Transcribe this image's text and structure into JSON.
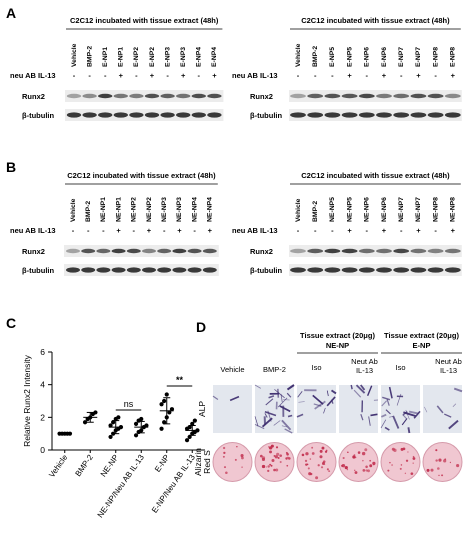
{
  "panels": {
    "A": {
      "label": "A",
      "blots": [
        {
          "header": "C2C12 incubated with tissue extract (48h)",
          "lanes": [
            "Vehicle",
            "BMP-2",
            "E-NP1",
            "E-NP1",
            "E-NP2",
            "E-NP2",
            "E-NP3",
            "E-NP3",
            "E-NP4",
            "E-NP4"
          ],
          "treatment_label": "neu AB IL-13",
          "treatment": [
            "-",
            "-",
            "-",
            "+",
            "-",
            "+",
            "-",
            "+",
            "-",
            "+"
          ],
          "rows": [
            "Runx2",
            "β-tubulin"
          ]
        },
        {
          "header": "C2C12 incubated with tissue extract (48h)",
          "lanes": [
            "Vehicle",
            "BMP-2",
            "E-NP5",
            "E-NP5",
            "E-NP6",
            "E-NP6",
            "E-NP7",
            "E-NP7",
            "E-NP8",
            "E-NP8"
          ],
          "treatment_label": "neu AB IL-13",
          "treatment": [
            "-",
            "-",
            "-",
            "+",
            "-",
            "+",
            "-",
            "+",
            "-",
            "+"
          ],
          "rows": [
            "Runx2",
            "β-tubulin"
          ]
        }
      ]
    },
    "B": {
      "label": "B",
      "blots": [
        {
          "header": "C2C12 incubated with tissue extract (48h)",
          "lanes": [
            "Vehicle",
            "BMP-2",
            "NE-NP1",
            "NE-NP1",
            "NE-NP2",
            "NE-NP2",
            "NE-NP3",
            "NE-NP3",
            "NE-NP4",
            "NE-NP4"
          ],
          "treatment_label": "neu AB IL-13",
          "treatment": [
            "-",
            "-",
            "-",
            "+",
            "-",
            "+",
            "-",
            "+",
            "-",
            "+"
          ],
          "rows": [
            "Runx2",
            "β-tubulin"
          ]
        },
        {
          "header": "C2C12 incubated with tissue extract (48h)",
          "lanes": [
            "Vehicle",
            "BMP-2",
            "NE-NP5",
            "NE-NP5",
            "NE-NP6",
            "NE-NP6",
            "NE-NP7",
            "NE-NP7",
            "NE-NP8",
            "NE-NP8"
          ],
          "treatment_label": "neu AB IL-13",
          "treatment": [
            "-",
            "-",
            "-",
            "+",
            "-",
            "+",
            "-",
            "+",
            "-",
            "+"
          ],
          "rows": [
            "Runx2",
            "β-tubulin"
          ]
        }
      ]
    },
    "C": {
      "label": "C"
    },
    "D": {
      "label": "D",
      "columns": [
        "Vehicle",
        "BMP-2"
      ],
      "groups": [
        {
          "title": "Tissue extract (20μg)",
          "subtitle": "NE-NP",
          "columns": [
            [
              "Iso"
            ],
            [
              "Neut Ab",
              "IL-13"
            ]
          ]
        },
        {
          "title": "Tissue extract (20μg)",
          "subtitle": "E-NP",
          "columns": [
            [
              "Iso"
            ],
            [
              "Neut Ab",
              "IL-13"
            ]
          ]
        }
      ],
      "rows": [
        [
          "ALP"
        ],
        [
          "Alizarin",
          "Red S"
        ]
      ]
    }
  },
  "chart_data": {
    "type": "dot",
    "ylabel": "Relative Runx2 Intensity",
    "categories": [
      "Vehicle",
      "BMP-2",
      "NE-NP",
      "NE-NP/Neu AB IL-13",
      "E-NP",
      "E-NP/Neu AB IL-13"
    ],
    "points": [
      [
        1,
        1,
        1,
        1,
        1
      ],
      [
        1.7,
        1.9,
        2.0,
        2.2,
        2.3
      ],
      [
        0.8,
        1.0,
        1.2,
        1.3,
        1.4,
        1.5,
        1.7,
        1.9,
        2.0
      ],
      [
        0.9,
        1.1,
        1.2,
        1.4,
        1.5,
        1.6,
        1.8,
        1.9
      ],
      [
        1.3,
        1.7,
        2.0,
        2.3,
        2.5,
        2.8,
        3.0,
        3.4
      ],
      [
        0.6,
        0.8,
        1.0,
        1.1,
        1.2,
        1.3,
        1.4,
        1.6,
        1.8
      ]
    ],
    "means": [
      1.0,
      2.0,
      1.4,
      1.4,
      2.4,
      1.2
    ],
    "errors": [
      0,
      0.3,
      0.4,
      0.35,
      0.8,
      0.3
    ],
    "color": "#000000",
    "ylim": [
      0,
      6
    ],
    "yticks": [
      0,
      2,
      4,
      6
    ],
    "annotations": [
      "ns",
      "**"
    ]
  }
}
